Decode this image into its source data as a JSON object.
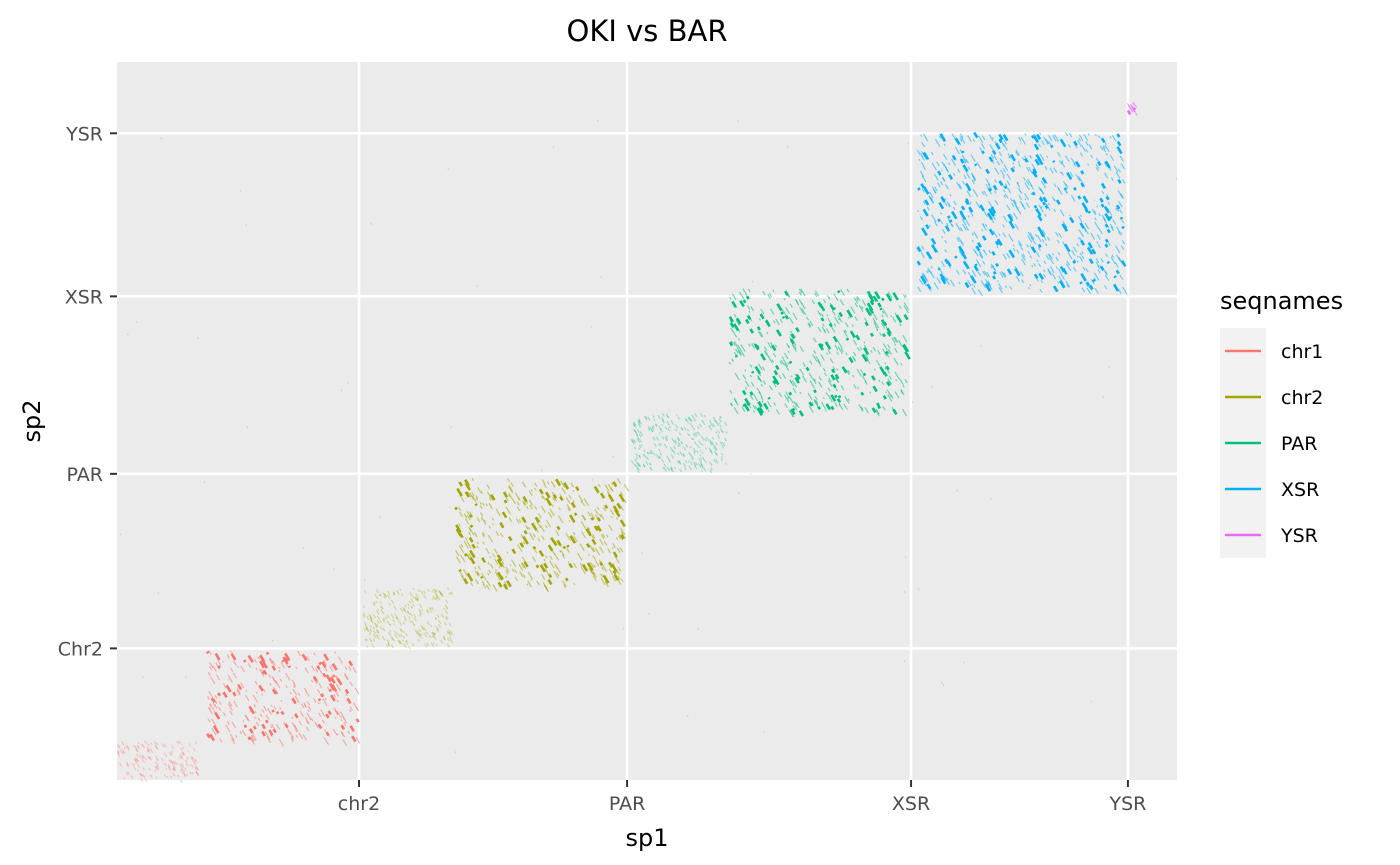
{
  "chart_data": {
    "type": "scatter",
    "title": "OKI vs BAR",
    "xlabel": "sp1",
    "ylabel": "sp2",
    "x_ticks": [
      {
        "label": "chr2",
        "value": 0.2283
      },
      {
        "label": "PAR",
        "value": 0.4812
      },
      {
        "label": "XSR",
        "value": 0.7491
      },
      {
        "label": "YSR",
        "value": 0.9537
      }
    ],
    "y_ticks": [
      {
        "label": "Chr2",
        "value": 0.1833
      },
      {
        "label": "PAR",
        "value": 0.4264
      },
      {
        "label": "XSR",
        "value": 0.6736
      },
      {
        "label": "YSR",
        "value": 0.9007
      }
    ],
    "xlim": [
      0,
      1
    ],
    "ylim": [
      0,
      1
    ],
    "grid": true,
    "legend": {
      "title": "seqnames",
      "position": "right",
      "entries": [
        "chr1",
        "chr2",
        "PAR",
        "XSR",
        "YSR"
      ]
    },
    "series_colors": {
      "chr1": "#F8766D",
      "chr2": "#A3A500",
      "PAR": "#00BF7D",
      "XSR": "#00B0F6",
      "YSR": "#E76BF3"
    },
    "series": [
      {
        "name": "chr1",
        "x": [
          0.0,
          0.0755
        ],
        "y": [
          0.0,
          0.0556
        ],
        "fade": true
      },
      {
        "name": "chr1",
        "x": [
          0.0849,
          0.2264
        ],
        "y": [
          0.0556,
          0.1806
        ],
        "fade": false
      },
      {
        "name": "chr2",
        "x": [
          0.2321,
          0.3151
        ],
        "y": [
          0.1861,
          0.2681
        ],
        "fade": true
      },
      {
        "name": "chr2",
        "x": [
          0.3189,
          0.4792
        ],
        "y": [
          0.2708,
          0.4208
        ],
        "fade": false
      },
      {
        "name": "PAR",
        "x": [
          0.4849,
          0.5755
        ],
        "y": [
          0.4319,
          0.5111
        ],
        "fade": true
      },
      {
        "name": "PAR",
        "x": [
          0.5774,
          0.7453
        ],
        "y": [
          0.5139,
          0.6847
        ],
        "fade": false
      },
      {
        "name": "XSR",
        "x": [
          0.7547,
          0.9491
        ],
        "y": [
          0.6833,
          0.9028
        ],
        "fade": false
      },
      {
        "name": "YSR",
        "x": [
          0.9528,
          0.9594
        ],
        "y": [
          0.9306,
          0.9444
        ],
        "fade": false
      }
    ]
  }
}
